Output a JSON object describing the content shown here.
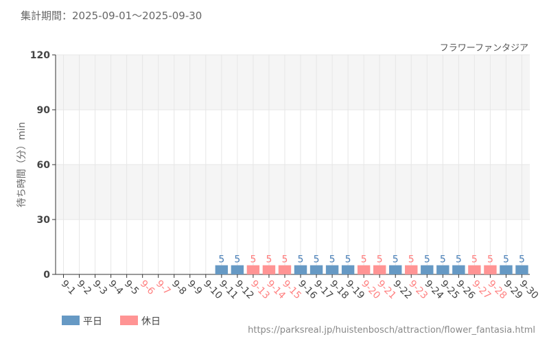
{
  "header": {
    "period": "集計期間：2025-09-01～2025-09-30"
  },
  "footer": {
    "url": "https://parksreal.jp/huistenbosch/attraction/flower_fantasia.html"
  },
  "colors": {
    "weekday": "#6699c4",
    "holiday": "#ff9494",
    "weekday_label": "#4a80b8",
    "holiday_label": "#ff7b7b",
    "holiday_tick": "#ff8080"
  },
  "chart_data": {
    "type": "bar",
    "title": "フラワーファンタジア",
    "ylabel": "待ち時間（分）min",
    "ylim": [
      0,
      120
    ],
    "yticks": [
      0,
      30,
      60,
      90,
      120
    ],
    "grid": true,
    "legend": {
      "position": "bottom-left",
      "entries": [
        "平日",
        "休日"
      ]
    },
    "categories": [
      "9-1",
      "9-2",
      "9-3",
      "9-4",
      "9-5",
      "9-6",
      "9-7",
      "9-8",
      "9-9",
      "9-10",
      "9-11",
      "9-12",
      "9-13",
      "9-14",
      "9-15",
      "9-16",
      "9-17",
      "9-18",
      "9-19",
      "9-20",
      "9-21",
      "9-22",
      "9-23",
      "9-24",
      "9-25",
      "9-26",
      "9-27",
      "9-28",
      "9-29",
      "9-30"
    ],
    "holiday": [
      false,
      false,
      false,
      false,
      false,
      true,
      true,
      false,
      false,
      false,
      false,
      false,
      true,
      true,
      true,
      false,
      false,
      false,
      false,
      true,
      true,
      false,
      true,
      false,
      false,
      false,
      true,
      true,
      false,
      false
    ],
    "values": [
      null,
      null,
      null,
      null,
      null,
      null,
      null,
      null,
      null,
      null,
      5,
      5,
      5,
      5,
      5,
      5,
      5,
      5,
      5,
      5,
      5,
      5,
      5,
      5,
      5,
      5,
      5,
      5,
      5,
      5
    ]
  }
}
